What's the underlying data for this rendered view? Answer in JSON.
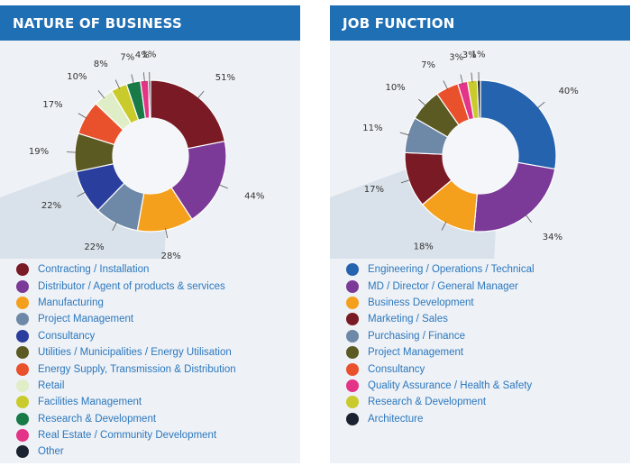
{
  "chart_data": [
    {
      "type": "donut",
      "title": "NATURE OF BUSINESS",
      "categories": [
        "Contracting / Installation",
        "Distributor / Agent of products & services",
        "Manufacturing",
        "Project Management",
        "Consultancy",
        "Utilities / Municipalities / Energy Utilisation",
        "Energy Supply, Transmission & Distribution",
        "Retail",
        "Facilities Management",
        "Research & Development",
        "Real Estate / Community Development",
        "Other"
      ],
      "values": [
        51,
        44,
        28,
        22,
        22,
        19,
        17,
        10,
        8,
        7,
        4,
        1
      ],
      "labels": [
        "51%",
        "44%",
        "28%",
        "22%",
        "22%",
        "19%",
        "17%",
        "10%",
        "8%",
        "7%",
        "4%",
        "1%"
      ],
      "colors": [
        "#7a1a24",
        "#7c3a98",
        "#f5a01c",
        "#6e88a8",
        "#2a3f9d",
        "#5a5a22",
        "#e8512b",
        "#e0eec8",
        "#c9cb2c",
        "#177a47",
        "#e43487",
        "#1b2330"
      ]
    },
    {
      "type": "donut",
      "title": "JOB FUNCTION",
      "categories": [
        "Engineering / Operations / Technical",
        "MD / Director / General Manager",
        "Business Development",
        "Marketing / Sales",
        "Purchasing / Finance",
        "Project Management",
        "Consultancy",
        "Quality Assurance / Health & Safety",
        "Research & Development",
        "Architecture"
      ],
      "values": [
        40,
        34,
        18,
        17,
        11,
        10,
        7,
        3,
        3,
        1
      ],
      "labels": [
        "40%",
        "34%",
        "18%",
        "17%",
        "11%",
        "10%",
        "7%",
        "3%",
        "3%",
        "1%"
      ],
      "colors": [
        "#2663ae",
        "#7c3a98",
        "#f5a01c",
        "#7a1a24",
        "#6e88a8",
        "#5a5a22",
        "#e8512b",
        "#e43487",
        "#c9cb2c",
        "#1b2330"
      ]
    }
  ]
}
